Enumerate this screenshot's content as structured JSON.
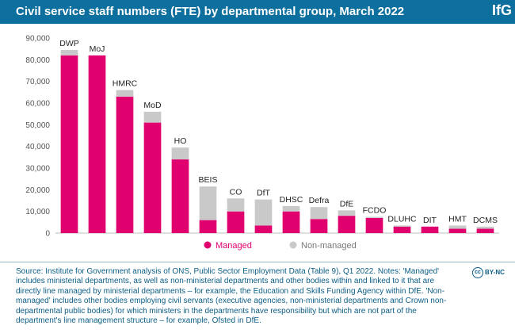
{
  "header": {
    "title": "Civil service staff numbers (FTE) by departmental group, March 2022",
    "logo": "IfG"
  },
  "colors": {
    "header_bg": "#0d6f9e",
    "managed": "#e0006e",
    "non_managed": "#c9c9c9",
    "text": "#0d5e86"
  },
  "chart_data": {
    "type": "bar",
    "stacked": true,
    "categories": [
      "DWP",
      "MoJ",
      "HMRC",
      "MoD",
      "HO",
      "BEIS",
      "CO",
      "DfT",
      "DHSC",
      "Defra",
      "DfE",
      "FCDO",
      "DLUHC",
      "DIT",
      "HMT",
      "DCMS"
    ],
    "series": [
      {
        "name": "Managed",
        "color": "#e0006e",
        "values": [
          82000,
          82000,
          63000,
          51000,
          34000,
          6000,
          10000,
          3500,
          10000,
          6500,
          8000,
          7000,
          3000,
          3000,
          2000,
          2000
        ]
      },
      {
        "name": "Non-managed",
        "color": "#c9c9c9",
        "values": [
          2500,
          0,
          3000,
          5000,
          5500,
          15500,
          6000,
          12000,
          2500,
          5500,
          2500,
          500,
          500,
          0,
          1500,
          1000
        ]
      }
    ],
    "ylim": [
      0,
      90000
    ],
    "yticks": [
      0,
      10000,
      20000,
      30000,
      40000,
      50000,
      60000,
      70000,
      80000,
      90000
    ],
    "ytick_labels": [
      "0",
      "10,000",
      "20,000",
      "30,000",
      "40,000",
      "50,000",
      "60,000",
      "70,000",
      "80,000",
      "90,000"
    ],
    "grid": false,
    "legend": [
      "Managed",
      "Non-managed"
    ],
    "legend_position": "bottom-left"
  },
  "source": {
    "text": "Source: Institute for Government analysis of ONS, Public Sector Employment Data (Table 9), Q1 2022. Notes: 'Managed' includes ministerial departments, as well as non-ministerial departments and other bodies within and linked to it that are directly line managed by ministerial departments – for example, the Education and Skills Funding Agency within DfE. 'Non-managed' includes other bodies employing civil servants (executive agencies, non-ministerial departments and Crown non-departmental public bodies) for which ministers in the departments have responsibility but which are not part of the department's line management structure – for example, Ofsted in DfE.",
    "license_icon": "cc",
    "license": "BY-NC"
  }
}
